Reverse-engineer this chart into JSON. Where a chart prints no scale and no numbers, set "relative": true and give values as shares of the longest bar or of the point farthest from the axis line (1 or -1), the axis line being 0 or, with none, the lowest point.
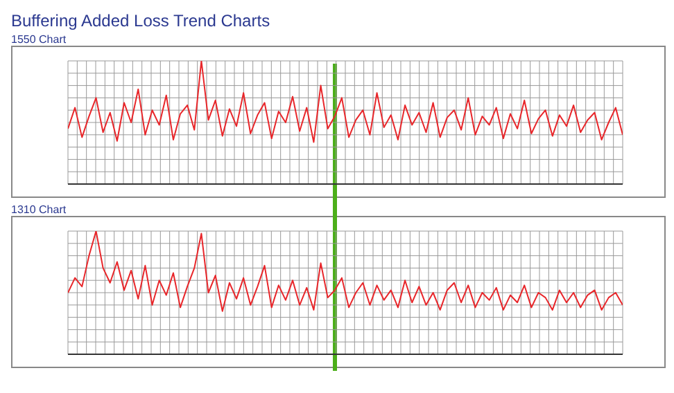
{
  "chart_data": [
    {
      "type": "line",
      "title": "Buffering Added Loss Trend Charts",
      "subtitle": "1550 Chart",
      "relative": true,
      "grid": true,
      "marker": "none",
      "line_style": "solid",
      "categories": [
        null,
        null,
        null,
        null,
        null,
        null,
        null,
        null,
        null,
        null,
        null,
        null,
        null,
        null,
        null,
        null,
        null,
        null,
        null,
        null,
        null,
        null,
        null,
        null,
        null,
        null,
        null,
        null,
        null,
        null,
        null,
        null,
        null,
        null,
        null,
        null,
        null,
        null,
        null,
        null,
        null,
        null,
        null,
        null,
        null,
        null,
        null,
        null,
        null,
        null,
        null,
        null,
        null,
        null,
        null,
        null,
        null,
        null,
        null,
        null,
        null,
        null,
        null,
        null,
        null,
        null,
        null,
        null,
        null,
        null,
        null,
        null,
        null,
        null,
        null,
        null,
        null,
        null,
        null,
        null
      ],
      "series": [
        {
          "color": "#e8262a",
          "values": [
            0.45,
            0.62,
            0.38,
            0.55,
            0.7,
            0.42,
            0.58,
            0.35,
            0.66,
            0.5,
            0.77,
            0.4,
            0.6,
            0.48,
            0.72,
            0.36,
            0.57,
            0.64,
            0.44,
            1.0,
            0.52,
            0.68,
            0.39,
            0.61,
            0.47,
            0.74,
            0.41,
            0.56,
            0.66,
            0.37,
            0.59,
            0.5,
            0.71,
            0.43,
            0.62,
            0.34,
            0.8,
            0.45,
            0.55,
            0.7,
            0.38,
            0.52,
            0.6,
            0.4,
            0.74,
            0.46,
            0.56,
            0.36,
            0.64,
            0.48,
            0.58,
            0.42,
            0.66,
            0.38,
            0.54,
            0.6,
            0.44,
            0.7,
            0.4,
            0.55,
            0.48,
            0.62,
            0.37,
            0.57,
            0.45,
            0.68,
            0.41,
            0.53,
            0.6,
            0.39,
            0.56,
            0.47,
            0.64,
            0.42,
            0.52,
            0.58,
            0.36,
            0.5,
            0.62,
            0.4
          ]
        }
      ]
    },
    {
      "type": "line",
      "title": "1310 Chart",
      "relative": true,
      "grid": true,
      "marker": "none",
      "line_style": "solid",
      "categories": [
        null,
        null,
        null,
        null,
        null,
        null,
        null,
        null,
        null,
        null,
        null,
        null,
        null,
        null,
        null,
        null,
        null,
        null,
        null,
        null,
        null,
        null,
        null,
        null,
        null,
        null,
        null,
        null,
        null,
        null,
        null,
        null,
        null,
        null,
        null,
        null,
        null,
        null,
        null,
        null,
        null,
        null,
        null,
        null,
        null,
        null,
        null,
        null,
        null,
        null,
        null,
        null,
        null,
        null,
        null,
        null,
        null,
        null,
        null,
        null,
        null,
        null,
        null,
        null,
        null,
        null,
        null,
        null,
        null,
        null,
        null,
        null,
        null,
        null,
        null,
        null,
        null,
        null,
        null,
        null
      ],
      "series": [
        {
          "color": "#e8262a",
          "values": [
            0.5,
            0.62,
            0.55,
            0.8,
            1.0,
            0.7,
            0.58,
            0.75,
            0.52,
            0.68,
            0.45,
            0.72,
            0.4,
            0.6,
            0.48,
            0.66,
            0.38,
            0.55,
            0.7,
            0.98,
            0.5,
            0.64,
            0.35,
            0.58,
            0.45,
            0.62,
            0.4,
            0.55,
            0.72,
            0.38,
            0.56,
            0.44,
            0.6,
            0.4,
            0.54,
            0.36,
            0.74,
            0.46,
            0.52,
            0.62,
            0.38,
            0.5,
            0.58,
            0.4,
            0.56,
            0.44,
            0.52,
            0.38,
            0.6,
            0.42,
            0.55,
            0.4,
            0.5,
            0.36,
            0.52,
            0.58,
            0.42,
            0.56,
            0.38,
            0.5,
            0.44,
            0.54,
            0.36,
            0.48,
            0.42,
            0.56,
            0.38,
            0.5,
            0.46,
            0.36,
            0.52,
            0.42,
            0.5,
            0.38,
            0.48,
            0.52,
            0.36,
            0.46,
            0.5,
            0.4
          ]
        }
      ]
    }
  ]
}
